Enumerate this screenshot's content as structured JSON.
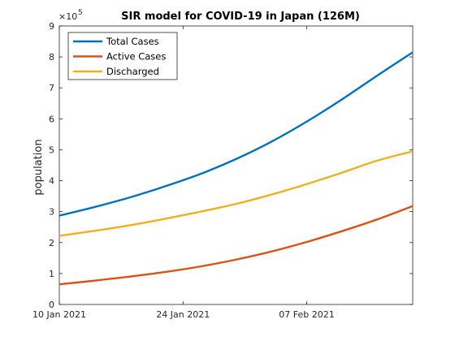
{
  "chart_data": {
    "type": "line",
    "title": "SIR model for COVID-19 in Japan (126M)",
    "xlabel": "",
    "ylabel": "population",
    "y_exponent_label": "×10",
    "y_exponent_power": "5",
    "x_unit": "days since 10 Jan 2021",
    "xlim": [
      0,
      40
    ],
    "ylim": [
      0,
      9
    ],
    "y_scale": 100000,
    "x_ticks": [
      {
        "value": 0,
        "label": "10 Jan 2021"
      },
      {
        "value": 14,
        "label": "24 Jan 2021"
      },
      {
        "value": 28,
        "label": "07 Feb 2021"
      }
    ],
    "y_ticks": [
      0,
      1,
      2,
      3,
      4,
      5,
      6,
      7,
      8,
      9
    ],
    "grid": false,
    "legend_position": "top-left",
    "series": [
      {
        "name": "Total Cases",
        "color": "#0072BD",
        "x": [
          0,
          4,
          8,
          12,
          16,
          20,
          24,
          28,
          32,
          36,
          40
        ],
        "y": [
          2.87,
          3.15,
          3.46,
          3.82,
          4.22,
          4.7,
          5.26,
          5.91,
          6.63,
          7.4,
          8.15
        ]
      },
      {
        "name": "Active Cases",
        "color": "#D95319",
        "x": [
          0,
          4,
          8,
          12,
          16,
          20,
          24,
          28,
          32,
          36,
          40
        ],
        "y": [
          0.65,
          0.77,
          0.9,
          1.05,
          1.23,
          1.45,
          1.71,
          2.02,
          2.37,
          2.75,
          3.18
        ]
      },
      {
        "name": "Discharged",
        "color": "#EDB120",
        "x": [
          0,
          4,
          8,
          12,
          16,
          20,
          24,
          28,
          32,
          36,
          40
        ],
        "y": [
          2.22,
          2.38,
          2.56,
          2.77,
          3.0,
          3.25,
          3.55,
          3.89,
          4.26,
          4.65,
          4.95
        ]
      }
    ]
  }
}
